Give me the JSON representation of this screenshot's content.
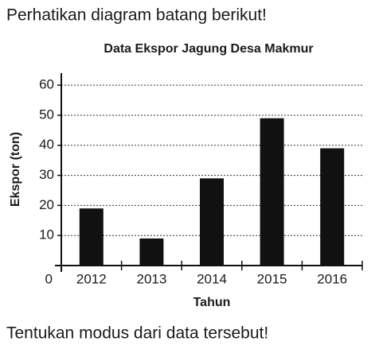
{
  "intro": "Perhatikan diagram batang berikut!",
  "chart_data": {
    "type": "bar",
    "title": "Data Ekspor Jagung Desa Makmur",
    "x_label": "Tahun",
    "y_label": "Ekspor (ton)",
    "categories": [
      "2012",
      "2013",
      "2014",
      "2015",
      "2016"
    ],
    "values": [
      19,
      9,
      29,
      49,
      39
    ],
    "color": "#111111",
    "ylim": [
      0,
      64
    ],
    "yticks": [
      0,
      10,
      20,
      30,
      40,
      50,
      60
    ],
    "grid": true
  },
  "question": "Tentukan modus dari data tersebut!"
}
